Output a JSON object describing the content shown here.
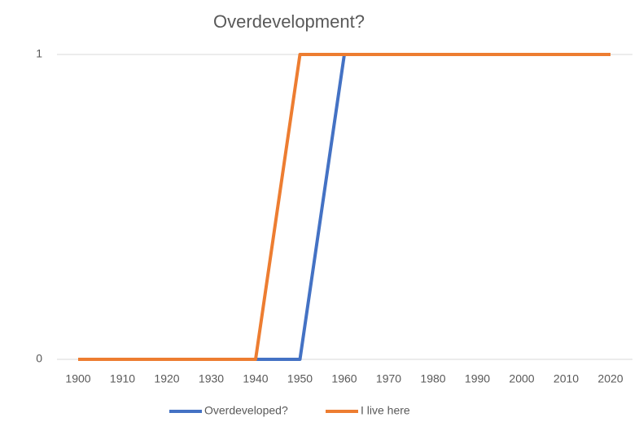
{
  "chart_data": {
    "type": "line",
    "title": "Overdevelopment?",
    "categories": [
      "1900",
      "1910",
      "1920",
      "1930",
      "1940",
      "1950",
      "1960",
      "1970",
      "1980",
      "1990",
      "2000",
      "2010",
      "2020"
    ],
    "series": [
      {
        "name": "Overdeveloped?",
        "color": "#4472c4",
        "values": [
          0,
          0,
          0,
          0,
          0,
          0,
          1,
          1,
          1,
          1,
          1,
          1,
          1
        ]
      },
      {
        "name": "I live here",
        "color": "#ed7d31",
        "values": [
          0,
          0,
          0,
          0,
          0,
          1,
          1,
          1,
          1,
          1,
          1,
          1,
          1
        ]
      }
    ],
    "ylim": [
      0,
      1
    ],
    "yticks": [
      0,
      1
    ],
    "grid": true,
    "legend": "bottom"
  }
}
